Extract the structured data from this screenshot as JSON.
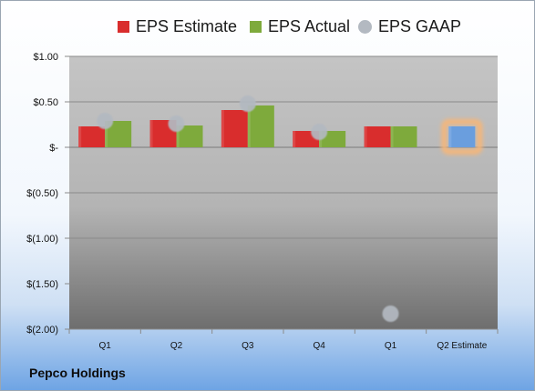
{
  "chart_data": {
    "type": "bar",
    "categories": [
      "Q1",
      "Q2",
      "Q3",
      "Q4",
      "Q1",
      "Q2 Estimate"
    ],
    "series": [
      {
        "name": "EPS Estimate",
        "kind": "bar",
        "color": "#d92d2d",
        "values": [
          0.23,
          0.3,
          0.41,
          0.18,
          0.23,
          null
        ]
      },
      {
        "name": "EPS Actual",
        "kind": "bar",
        "color": "#7eaa3c",
        "values": [
          0.29,
          0.24,
          0.46,
          0.18,
          0.23,
          null
        ]
      },
      {
        "name": "EPS GAAP",
        "kind": "marker",
        "color": "#b3b9c1",
        "values": [
          0.29,
          0.26,
          0.48,
          0.17,
          -1.83,
          null
        ]
      },
      {
        "name": "",
        "kind": "bar",
        "color": "#6a9ede",
        "highlight": "#f6b678",
        "values": [
          null,
          null,
          null,
          null,
          null,
          0.23
        ]
      }
    ],
    "y_ticks": [
      {
        "value": 1.0,
        "label": "$1.00"
      },
      {
        "value": 0.5,
        "label": "$0.50"
      },
      {
        "value": 0.0,
        "label": "$-"
      },
      {
        "value": -0.5,
        "label": "$(0.50)"
      },
      {
        "value": -1.0,
        "label": "$(1.00)"
      },
      {
        "value": -1.5,
        "label": "$(1.50)"
      },
      {
        "value": -2.0,
        "label": "$(2.00)"
      }
    ],
    "ylim": [
      -2.0,
      1.0
    ],
    "grid": true,
    "legend_position": "top"
  },
  "company": "Pepco Holdings"
}
